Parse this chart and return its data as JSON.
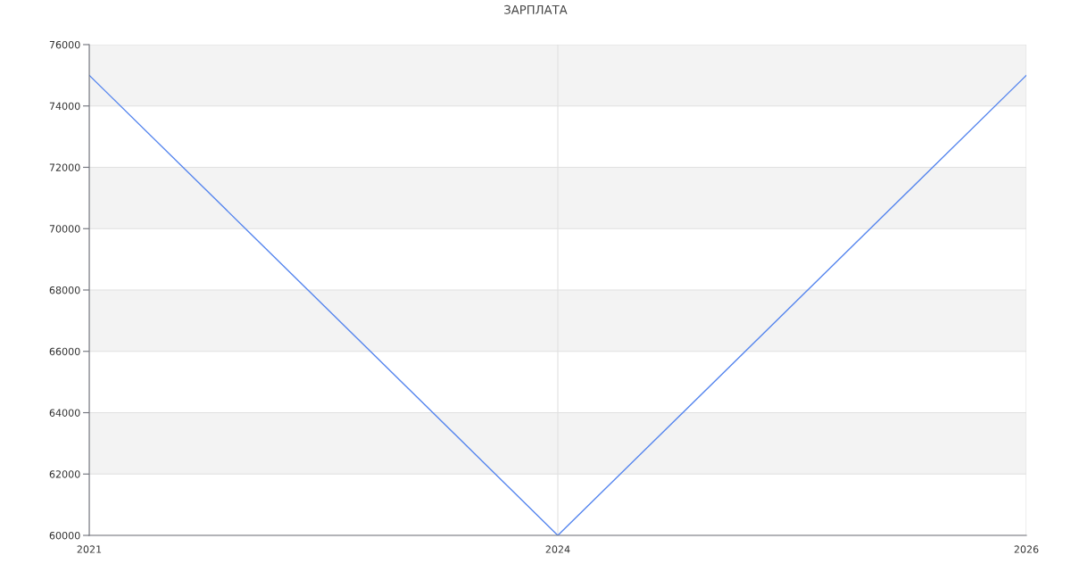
{
  "chart_data": {
    "type": "line",
    "title": "ЗАРПЛАТА",
    "categories": [
      "2021",
      "2024",
      "2026"
    ],
    "series": [
      {
        "color": "#5585ee",
        "values": [
          75000,
          60000,
          75000
        ]
      }
    ],
    "ylim": [
      60000,
      76000
    ],
    "yticks": [
      60000,
      62000,
      64000,
      66000,
      68000,
      70000,
      72000,
      74000,
      76000
    ],
    "grid": true,
    "marker": "none",
    "line_style": "solid",
    "bands": [
      {
        "axis": "y",
        "from": 62000,
        "to": 64000,
        "color": "#f3f3f3"
      },
      {
        "axis": "y",
        "from": 66000,
        "to": 68000,
        "color": "#f3f3f3"
      },
      {
        "axis": "y",
        "from": 70000,
        "to": 72000,
        "color": "#f3f3f3"
      },
      {
        "axis": "y",
        "from": 74000,
        "to": 76000,
        "color": "#f3f3f3"
      }
    ]
  }
}
